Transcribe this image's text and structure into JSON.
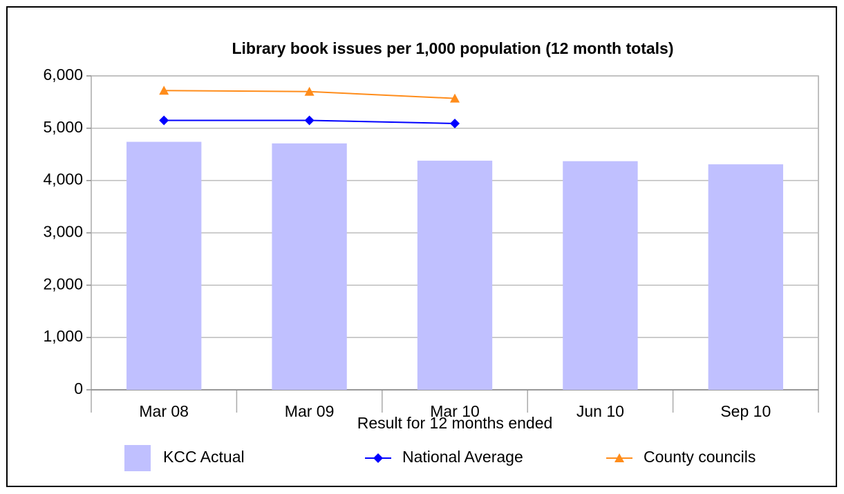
{
  "chart_data": {
    "type": "bar",
    "title": "Library book issues per 1,000 population (12 month totals)",
    "x_label": "Result for 12 months ended",
    "categories": [
      "Mar 08",
      "Mar 09",
      "Mar 10",
      "Jun 10",
      "Sep 10"
    ],
    "series": [
      {
        "name": "KCC Actual",
        "type": "bar",
        "color": "#c0c0ff",
        "values": [
          4740,
          4710,
          4380,
          4370,
          4310
        ]
      },
      {
        "name": "National Average",
        "type": "line",
        "marker": "diamond",
        "color": "#0000ff",
        "values": [
          5150,
          5150,
          5090,
          null,
          null
        ]
      },
      {
        "name": "County councils",
        "type": "line",
        "marker": "triangle",
        "color": "#ff8c1a",
        "values": [
          5720,
          5700,
          5570,
          null,
          null
        ]
      }
    ],
    "ylim": [
      0,
      6000
    ],
    "yticks": [
      0,
      {
        "value": 1000,
        "label": "1,000"
      },
      {
        "value": 2000,
        "label": "2,000"
      },
      {
        "value": 3000,
        "label": "3,000"
      },
      {
        "value": 4000,
        "label": "4,000"
      },
      {
        "value": 5000,
        "label": "5,000"
      },
      {
        "value": 6000,
        "label": "6,000"
      }
    ],
    "grid": true,
    "legend": "bottom"
  }
}
